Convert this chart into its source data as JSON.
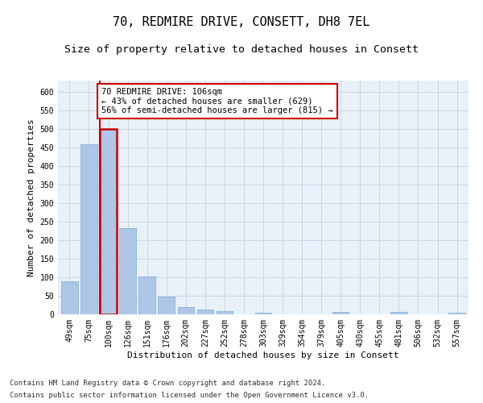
{
  "title": "70, REDMIRE DRIVE, CONSETT, DH8 7EL",
  "subtitle": "Size of property relative to detached houses in Consett",
  "xlabel": "Distribution of detached houses by size in Consett",
  "ylabel": "Number of detached properties",
  "categories": [
    "49sqm",
    "75sqm",
    "100sqm",
    "126sqm",
    "151sqm",
    "176sqm",
    "202sqm",
    "227sqm",
    "252sqm",
    "278sqm",
    "303sqm",
    "329sqm",
    "354sqm",
    "379sqm",
    "405sqm",
    "430sqm",
    "455sqm",
    "481sqm",
    "506sqm",
    "532sqm",
    "557sqm"
  ],
  "values": [
    88,
    458,
    500,
    233,
    103,
    47,
    19,
    12,
    8,
    0,
    5,
    0,
    0,
    0,
    6,
    0,
    0,
    6,
    0,
    0,
    5
  ],
  "bar_color": "#aec6e8",
  "bar_edge_color": "#7aafd4",
  "highlight_bar_index": 2,
  "highlight_color": "#cc0000",
  "property_label": "70 REDMIRE DRIVE: 106sqm",
  "annotation_line1": "← 43% of detached houses are smaller (629)",
  "annotation_line2": "56% of semi-detached houses are larger (815) →",
  "annotation_box_color": "#ffffff",
  "annotation_box_edge_color": "#cc0000",
  "ylim": [
    0,
    630
  ],
  "yticks": [
    0,
    50,
    100,
    150,
    200,
    250,
    300,
    350,
    400,
    450,
    500,
    550,
    600
  ],
  "footer_line1": "Contains HM Land Registry data © Crown copyright and database right 2024.",
  "footer_line2": "Contains public sector information licensed under the Open Government Licence v3.0.",
  "background_color": "#ffffff",
  "plot_bg_color": "#e8f0f8",
  "grid_color": "#c8d8e8",
  "title_fontsize": 11,
  "subtitle_fontsize": 9.5,
  "axis_label_fontsize": 8,
  "tick_fontsize": 7,
  "annotation_fontsize": 7.5,
  "footer_fontsize": 6.5
}
